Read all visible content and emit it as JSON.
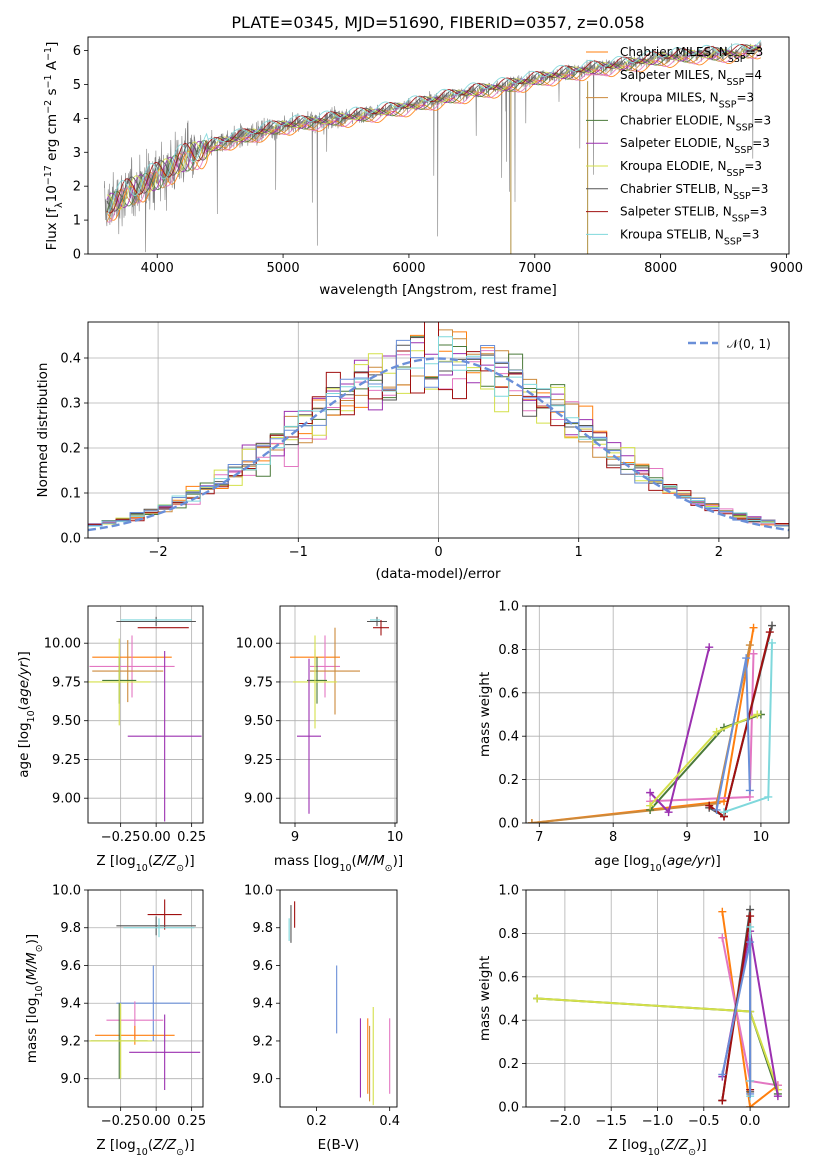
{
  "page_title": "PLATE=0345, MJD=51690, FIBERID=0357, z=0.058",
  "colors": [
    "#ff7f0e",
    "#e377c2",
    "#cc8a3c",
    "#4a7a3a",
    "#9b30b0",
    "#d4e04a",
    "#555555",
    "#a01010",
    "#7fd8dc"
  ],
  "model_names": [
    "Chabrier MILES",
    "Salpeter MILES",
    "Kroupa MILES",
    "Chabrier ELODIE",
    "Salpeter ELODIE",
    "Kroupa ELODIE",
    "Chabrier STELIB",
    "Salpeter STELIB",
    "Kroupa STELIB"
  ],
  "chart_data": [
    {
      "id": "spectrum",
      "type": "line",
      "title": "PLATE=0345, MJD=51690, FIBERID=0357, z=0.058",
      "xlabel": "wavelength [Angstrom, rest frame]",
      "ylabel": "Flux [f",
      "ylabel_parts": [
        "Flux [f",
        "λ",
        "10",
        "−17",
        " erg cm",
        "−2",
        " s",
        "−1",
        " A",
        "−1",
        "]"
      ],
      "xlim": [
        3450,
        9020
      ],
      "ylim": [
        0,
        6.4
      ],
      "xticks": [
        "4000",
        "5000",
        "6000",
        "7000",
        "8000",
        "9000"
      ],
      "yticks": [
        "0",
        "1",
        "2",
        "3",
        "4",
        "5",
        "6"
      ],
      "data_color": "#808080",
      "continuum_x": [
        3600,
        3800,
        4000,
        4200,
        4500,
        4800,
        5000,
        5300,
        5600,
        5900,
        6200,
        6500,
        6800,
        7100,
        7400,
        7700,
        8000,
        8300,
        8600,
        8800
      ],
      "continuum_y": [
        1.4,
        1.9,
        2.3,
        2.8,
        3.3,
        3.6,
        3.8,
        3.95,
        4.1,
        4.3,
        4.55,
        4.8,
        5.0,
        5.25,
        5.45,
        5.6,
        5.8,
        5.9,
        5.95,
        6.1
      ],
      "legend": [
        {
          "label": "Chabrier MILES, N",
          "sub": "SSP",
          "tail": "=3"
        },
        {
          "label": "Salpeter MILES, N",
          "sub": "SSP",
          "tail": "=4"
        },
        {
          "label": "Kroupa MILES, N",
          "sub": "SSP",
          "tail": "=3"
        },
        {
          "label": "Chabrier ELODIE, N",
          "sub": "SSP",
          "tail": "=3"
        },
        {
          "label": "Salpeter ELODIE, N",
          "sub": "SSP",
          "tail": "=3"
        },
        {
          "label": "Kroupa ELODIE, N",
          "sub": "SSP",
          "tail": "=3"
        },
        {
          "label": "Chabrier STELIB, N",
          "sub": "SSP",
          "tail": "=3"
        },
        {
          "label": "Salpeter STELIB, N",
          "sub": "SSP",
          "tail": "=3"
        },
        {
          "label": "Kroupa STELIB, N",
          "sub": "SSP",
          "tail": "=3"
        }
      ],
      "legend_placement": "right"
    },
    {
      "id": "residuals",
      "type": "histogram",
      "xlabel": "(data-model)/error",
      "ylabel": "Normed distribution",
      "xlim": [
        -2.5,
        2.5
      ],
      "ylim": [
        0,
        0.48
      ],
      "xticks": [
        "−2",
        "−1",
        "0",
        "1",
        "2"
      ],
      "yticks": [
        "0.0",
        "0.1",
        "0.2",
        "0.3",
        "0.4"
      ],
      "grid": true,
      "legend": "𝒩(0, 1)",
      "legend_placement": "top-right",
      "bin_width": 0.1
    },
    {
      "id": "age-vs-Z",
      "type": "errorbar",
      "xlabel": "Z [log",
      "ylabel": "age  [log",
      "xlim": [
        -0.48,
        0.33
      ],
      "ylim": [
        8.84,
        10.24
      ],
      "xticks": [
        "−0.25",
        "0.00",
        "0.25"
      ],
      "yticks": [
        "9.00",
        "9.25",
        "9.50",
        "9.75",
        "10.00"
      ],
      "grid": true,
      "points": [
        {
          "x": 0.0,
          "y": 10.14,
          "xerr": 0.28,
          "yerr": 0.03,
          "c": 6
        },
        {
          "x": 0.05,
          "y": 10.1,
          "xerr": 0.18,
          "yerr": 0.0,
          "c": 7
        },
        {
          "x": 0.0,
          "y": 10.15,
          "xerr": 0.25,
          "yerr": 0.0,
          "c": 8
        },
        {
          "x": -0.17,
          "y": 9.91,
          "xerr": 0.28,
          "yerr": 0.0,
          "c": 0
        },
        {
          "x": -0.17,
          "y": 9.85,
          "xerr": 0.3,
          "yerr": 0.2,
          "c": 1
        },
        {
          "x": -0.2,
          "y": 9.82,
          "xerr": 0.25,
          "yerr": 0.2,
          "c": 2
        },
        {
          "x": -0.26,
          "y": 9.76,
          "xerr": 0.12,
          "yerr": 0.15,
          "c": 3
        },
        {
          "x": -0.26,
          "y": 9.75,
          "xerr": 0.22,
          "yerr": 0.28,
          "c": 5
        },
        {
          "x": 0.06,
          "y": 9.4,
          "xerr": 0.26,
          "yerr": 0.55,
          "c": 4
        }
      ]
    },
    {
      "id": "age-vs-mass",
      "type": "errorbar",
      "xlabel": "mass [log",
      "xlim": [
        8.85,
        10.02
      ],
      "ylim": [
        8.84,
        10.24
      ],
      "xticks": [
        "9",
        "10"
      ],
      "yticks": [
        "9.00",
        "9.25",
        "9.50",
        "9.75",
        "10.00"
      ],
      "grid": true,
      "points": [
        {
          "x": 9.82,
          "y": 10.14,
          "xerr": 0.1,
          "yerr": 0.03,
          "c": 6
        },
        {
          "x": 9.86,
          "y": 10.1,
          "xerr": 0.08,
          "yerr": 0.05,
          "c": 7
        },
        {
          "x": 9.8,
          "y": 10.15,
          "xerr": 0.05,
          "yerr": 0.0,
          "c": 8
        },
        {
          "x": 9.2,
          "y": 9.91,
          "xerr": 0.25,
          "yerr": 0.05,
          "c": 0
        },
        {
          "x": 9.3,
          "y": 9.85,
          "xerr": 0.15,
          "yerr": 0.2,
          "c": 1
        },
        {
          "x": 9.4,
          "y": 9.82,
          "xerr": 0.25,
          "yerr": 0.28,
          "c": 2
        },
        {
          "x": 9.22,
          "y": 9.76,
          "xerr": 0.1,
          "yerr": 0.15,
          "c": 3
        },
        {
          "x": 9.2,
          "y": 9.75,
          "xerr": 0.22,
          "yerr": 0.3,
          "c": 5
        },
        {
          "x": 9.14,
          "y": 9.4,
          "xerr": 0.12,
          "yerr": 0.5,
          "c": 4
        }
      ]
    },
    {
      "id": "weight-vs-age",
      "type": "line",
      "xlabel": "age  [log",
      "ylabel": "mass weight",
      "xlim": [
        6.82,
        10.38
      ],
      "ylim": [
        0,
        1.0
      ],
      "xticks": [
        "7",
        "8",
        "9",
        "10"
      ],
      "yticks": [
        "0.0",
        "0.2",
        "0.4",
        "0.6",
        "0.8",
        "1.0"
      ],
      "grid": true,
      "series": [
        {
          "c": 0,
          "x": [
            6.9,
            9.5,
            9.9
          ],
          "y": [
            0.0,
            0.1,
            0.9
          ]
        },
        {
          "c": 1,
          "x": [
            8.5,
            9.85,
            9.9
          ],
          "y": [
            0.1,
            0.12,
            0.78
          ]
        },
        {
          "c": 2,
          "x": [
            6.9,
            9.4,
            9.85
          ],
          "y": [
            0.0,
            0.09,
            0.82
          ]
        },
        {
          "c": 3,
          "x": [
            8.5,
            9.5,
            10.0
          ],
          "y": [
            0.06,
            0.44,
            0.5
          ]
        },
        {
          "c": 4,
          "x": [
            8.5,
            8.75,
            9.3
          ],
          "y": [
            0.14,
            0.05,
            0.81
          ]
        },
        {
          "c": 5,
          "x": [
            8.5,
            9.4,
            9.95
          ],
          "y": [
            0.08,
            0.42,
            0.5
          ]
        },
        {
          "c": 6,
          "x": [
            9.3,
            9.5,
            10.15
          ],
          "y": [
            0.07,
            0.03,
            0.91
          ]
        },
        {
          "c": 7,
          "x": [
            9.3,
            9.5,
            10.12
          ],
          "y": [
            0.08,
            0.03,
            0.88
          ]
        },
        {
          "c": 8,
          "x": [
            9.5,
            10.1,
            10.15
          ],
          "y": [
            0.05,
            0.12,
            0.83
          ]
        },
        {
          "c": 9,
          "x": [
            9.4,
            9.8,
            9.85
          ],
          "y": [
            0.06,
            0.76,
            0.15
          ]
        }
      ]
    },
    {
      "id": "mass-vs-Z",
      "type": "errorbar",
      "xlabel": "Z [log",
      "ylabel": "mass [log",
      "xlim": [
        -0.48,
        0.33
      ],
      "ylim": [
        8.85,
        10.0
      ],
      "xticks": [
        "−0.25",
        "0.00",
        "0.25"
      ],
      "yticks": [
        "9.0",
        "9.2",
        "9.4",
        "9.6",
        "9.8",
        "10.0"
      ],
      "grid": true,
      "points": [
        {
          "x": 0.06,
          "y": 9.87,
          "xerr": 0.12,
          "yerr": 0.08,
          "c": 7
        },
        {
          "x": 0.0,
          "y": 9.81,
          "xerr": 0.28,
          "yerr": 0.05,
          "c": 6
        },
        {
          "x": 0.02,
          "y": 9.8,
          "xerr": 0.25,
          "yerr": 0.05,
          "c": 8
        },
        {
          "x": -0.02,
          "y": 9.4,
          "xerr": 0.26,
          "yerr": 0.2,
          "c": 9
        },
        {
          "x": -0.15,
          "y": 9.31,
          "xerr": 0.2,
          "yerr": 0.1,
          "c": 1
        },
        {
          "x": -0.15,
          "y": 9.23,
          "xerr": 0.28,
          "yerr": 0.05,
          "c": 0
        },
        {
          "x": -0.26,
          "y": 9.2,
          "xerr": 0.2,
          "yerr": 0.2,
          "c": 3
        },
        {
          "x": -0.25,
          "y": 9.2,
          "xerr": 0.22,
          "yerr": 0.2,
          "c": 5
        },
        {
          "x": 0.06,
          "y": 9.14,
          "xerr": 0.25,
          "yerr": 0.2,
          "c": 4
        }
      ]
    },
    {
      "id": "mass-vs-EBV",
      "type": "errorbar",
      "xlabel": "E(B-V)",
      "xlim": [
        0.1,
        0.42
      ],
      "ylim": [
        8.85,
        10.0
      ],
      "xticks": [
        "0.2",
        "0.4"
      ],
      "yticks": [
        "9.0",
        "9.2",
        "9.4",
        "9.6",
        "9.8",
        "10.0"
      ],
      "grid": false,
      "points": [
        {
          "x": 0.14,
          "y": 9.87,
          "xerr": 0.0,
          "yerr": 0.07,
          "c": 7
        },
        {
          "x": 0.13,
          "y": 9.82,
          "xerr": 0.0,
          "yerr": 0.1,
          "c": 6
        },
        {
          "x": 0.125,
          "y": 9.79,
          "xerr": 0.0,
          "yerr": 0.06,
          "c": 8
        },
        {
          "x": 0.255,
          "y": 9.42,
          "xerr": 0.0,
          "yerr": 0.18,
          "c": 9
        },
        {
          "x": 0.32,
          "y": 9.11,
          "xerr": 0.0,
          "yerr": 0.21,
          "c": 4
        },
        {
          "x": 0.345,
          "y": 9.08,
          "xerr": 0.0,
          "yerr": 0.2,
          "c": 2
        },
        {
          "x": 0.355,
          "y": 9.12,
          "xerr": 0.0,
          "yerr": 0.26,
          "c": 5
        },
        {
          "x": 0.34,
          "y": 9.12,
          "xerr": 0.0,
          "yerr": 0.2,
          "c": 0
        },
        {
          "x": 0.4,
          "y": 9.12,
          "xerr": 0.0,
          "yerr": 0.2,
          "c": 1
        }
      ]
    },
    {
      "id": "weight-vs-Z",
      "type": "line",
      "xlabel": "Z [log",
      "ylabel": "mass weight",
      "xlim": [
        -2.42,
        0.42
      ],
      "ylim": [
        0,
        1.0
      ],
      "xticks": [
        "−2.0",
        "−1.5",
        "−1.0",
        "−0.5",
        "0.0"
      ],
      "yticks": [
        "0.0",
        "0.2",
        "0.4",
        "0.6",
        "0.8",
        "1.0"
      ],
      "grid": true,
      "series": [
        {
          "c": 0,
          "x": [
            -0.3,
            0.0,
            0.3
          ],
          "y": [
            0.9,
            0.0,
            0.1
          ]
        },
        {
          "c": 1,
          "x": [
            -0.3,
            0.0,
            0.3
          ],
          "y": [
            0.78,
            0.12,
            0.1
          ]
        },
        {
          "c": 3,
          "x": [
            -2.3,
            0.0,
            0.3
          ],
          "y": [
            0.5,
            0.44,
            0.06
          ]
        },
        {
          "c": 5,
          "x": [
            -2.3,
            0.0,
            0.3
          ],
          "y": [
            0.5,
            0.44,
            0.08
          ]
        },
        {
          "c": 4,
          "x": [
            -0.3,
            0.0,
            0.3
          ],
          "y": [
            0.14,
            0.81,
            0.05
          ]
        },
        {
          "c": 6,
          "x": [
            -0.3,
            0.0,
            0.0
          ],
          "y": [
            0.03,
            0.91,
            0.07
          ]
        },
        {
          "c": 7,
          "x": [
            -0.3,
            0.0,
            0.0
          ],
          "y": [
            0.03,
            0.88,
            0.08
          ]
        },
        {
          "c": 8,
          "x": [
            0.0,
            0.0,
            0.0
          ],
          "y": [
            0.12,
            0.83,
            0.05
          ]
        },
        {
          "c": 9,
          "x": [
            -0.3,
            0.0,
            0.0
          ],
          "y": [
            0.15,
            0.76,
            0.06
          ]
        }
      ]
    }
  ]
}
